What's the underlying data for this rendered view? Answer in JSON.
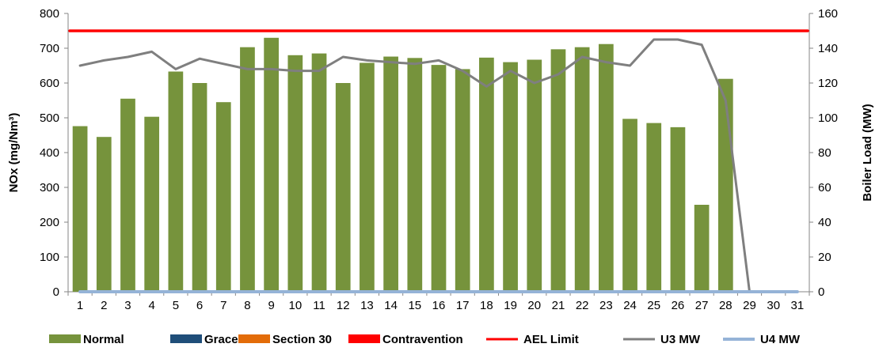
{
  "chart_data": {
    "type": "bar",
    "title": "",
    "categories": [
      "1",
      "2",
      "3",
      "4",
      "5",
      "6",
      "7",
      "8",
      "9",
      "10",
      "11",
      "12",
      "13",
      "14",
      "15",
      "16",
      "17",
      "18",
      "19",
      "20",
      "21",
      "22",
      "23",
      "24",
      "25",
      "26",
      "27",
      "28",
      "29",
      "30",
      "31"
    ],
    "series": [
      {
        "name": "Normal",
        "kind": "bar",
        "axis": "left",
        "color": "#76933C",
        "values": [
          476,
          445,
          555,
          503,
          633,
          600,
          545,
          703,
          730,
          680,
          685,
          600,
          658,
          676,
          672,
          652,
          640,
          673,
          660,
          667,
          697,
          703,
          712,
          497,
          485,
          473,
          250,
          612,
          0,
          0,
          0
        ]
      },
      {
        "name": "Grace",
        "kind": "bar",
        "axis": "left",
        "color": "#1F4E79",
        "values": [
          0,
          0,
          0,
          0,
          0,
          0,
          0,
          0,
          0,
          0,
          0,
          0,
          0,
          0,
          0,
          0,
          0,
          0,
          0,
          0,
          0,
          0,
          0,
          0,
          0,
          0,
          0,
          0,
          0,
          0,
          0
        ]
      },
      {
        "name": "Section 30",
        "kind": "bar",
        "axis": "left",
        "color": "#E36C09",
        "values": [
          0,
          0,
          0,
          0,
          0,
          0,
          0,
          0,
          0,
          0,
          0,
          0,
          0,
          0,
          0,
          0,
          0,
          0,
          0,
          0,
          0,
          0,
          0,
          0,
          0,
          0,
          0,
          0,
          0,
          0,
          0
        ]
      },
      {
        "name": "Contravention",
        "kind": "bar",
        "axis": "left",
        "color": "#FF0000",
        "values": [
          0,
          0,
          0,
          0,
          0,
          0,
          0,
          0,
          0,
          0,
          0,
          0,
          0,
          0,
          0,
          0,
          0,
          0,
          0,
          0,
          0,
          0,
          0,
          0,
          0,
          0,
          0,
          0,
          0,
          0,
          0
        ]
      },
      {
        "name": "AEL Limit",
        "kind": "line",
        "axis": "left",
        "color": "#FF0000",
        "values": [
          750,
          750,
          750,
          750,
          750,
          750,
          750,
          750,
          750,
          750,
          750,
          750,
          750,
          750,
          750,
          750,
          750,
          750,
          750,
          750,
          750,
          750,
          750,
          750,
          750,
          750,
          750,
          750,
          750,
          750,
          750
        ]
      },
      {
        "name": "U3 MW",
        "kind": "line",
        "axis": "right",
        "color": "#7F7F7F",
        "values": [
          130,
          133,
          135,
          138,
          128,
          134,
          131,
          128,
          128,
          127,
          127,
          135,
          133,
          132,
          131,
          133,
          127,
          118,
          127,
          120,
          125,
          135,
          132,
          130,
          145,
          145,
          142,
          110,
          0,
          0,
          0
        ]
      },
      {
        "name": "U4 MW",
        "kind": "line",
        "axis": "right",
        "color": "#95B3D7",
        "values": [
          0,
          0,
          0,
          0,
          0,
          0,
          0,
          0,
          0,
          0,
          0,
          0,
          0,
          0,
          0,
          0,
          0,
          0,
          0,
          0,
          0,
          0,
          0,
          0,
          0,
          0,
          0,
          0,
          0,
          0,
          0
        ]
      }
    ],
    "ylabel": "NOx (mg/Nm³)",
    "ylim": [
      0,
      800
    ],
    "yticks": [
      "0",
      "100",
      "200",
      "300",
      "400",
      "500",
      "600",
      "700",
      "800"
    ],
    "y2label": "Boiler Load (MW)",
    "y2lim": [
      0,
      160
    ],
    "y2ticks": [
      "0",
      "20",
      "40",
      "60",
      "80",
      "100",
      "120",
      "140",
      "160"
    ],
    "grid": false,
    "legend_position": "bottom"
  }
}
